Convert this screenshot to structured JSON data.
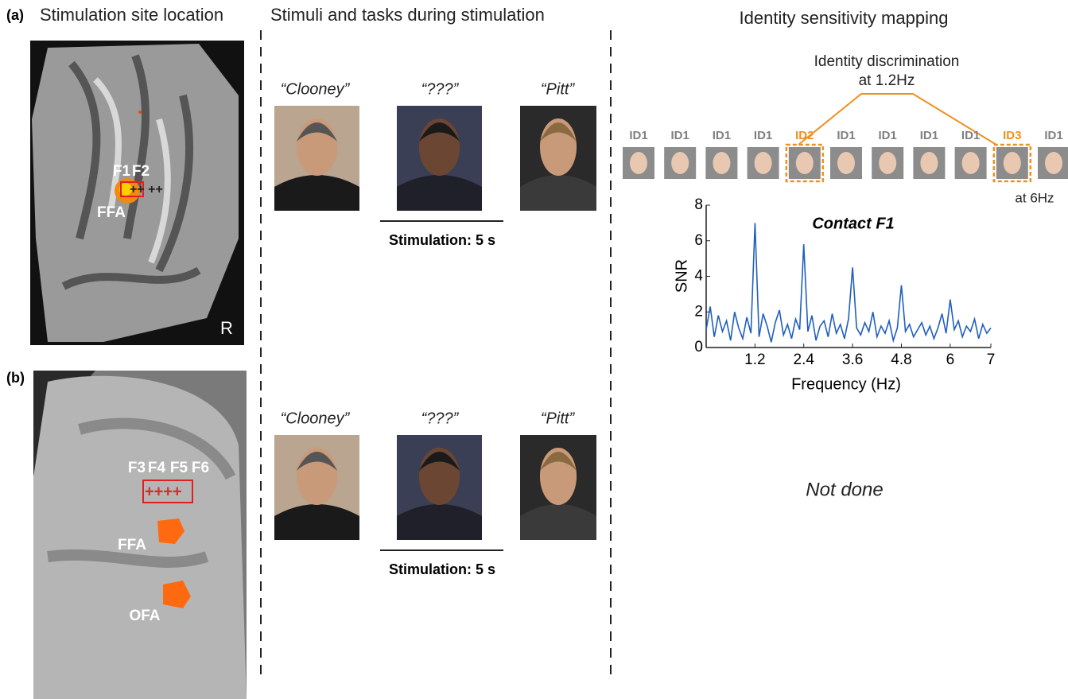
{
  "panels": {
    "a": "(a)",
    "b": "(b)"
  },
  "headers": [
    "Stimulation site location",
    "Stimuli and tasks during stimulation",
    "Identity sensitivity mapping"
  ],
  "brain_a": {
    "contacts": [
      "F1",
      "F2"
    ],
    "region": "FFA",
    "side": "R"
  },
  "brain_b": {
    "contacts": [
      "F3",
      "F4",
      "F5",
      "F6"
    ],
    "regions": [
      "FFA",
      "OFA"
    ]
  },
  "stimuli": [
    {
      "names": [
        "“Clooney”",
        "“???”",
        "“Pitt”"
      ],
      "task": "Stimulation:  5 s"
    },
    {
      "names": [
        "“Clooney”",
        "“???”",
        "“Pitt”"
      ],
      "task": "Stimulation:  5 s"
    }
  ],
  "mapping": {
    "discrimination": [
      "Identity discrimination",
      "at 1.2Hz"
    ],
    "base_rate": "at 6Hz",
    "not_done": "Not done",
    "ids": [
      {
        "label": "ID1",
        "color": "#7f7f7f"
      },
      {
        "label": "ID1",
        "color": "#7f7f7f"
      },
      {
        "label": "ID1",
        "color": "#7f7f7f"
      },
      {
        "label": "ID1",
        "color": "#7f7f7f"
      },
      {
        "label": "ID2",
        "color": "#f0901e"
      },
      {
        "label": "ID1",
        "color": "#7f7f7f"
      },
      {
        "label": "ID1",
        "color": "#7f7f7f"
      },
      {
        "label": "ID1",
        "color": "#7f7f7f"
      },
      {
        "label": "ID1",
        "color": "#7f7f7f"
      },
      {
        "label": "ID3",
        "color": "#f0901e"
      },
      {
        "label": "ID1",
        "color": "#7f7f7f"
      }
    ]
  },
  "chart_data": {
    "type": "line",
    "title": "Contact F1",
    "xlabel": "Frequency (Hz)",
    "ylabel": "SNR",
    "xlim": [
      0,
      7
    ],
    "ylim": [
      0,
      8
    ],
    "xticks": [
      1.2,
      2.4,
      3.6,
      4.8,
      6,
      7
    ],
    "yticks": [
      0,
      2,
      4,
      6,
      8
    ],
    "color": "#1f5fbf",
    "x": [
      0.0,
      0.1,
      0.2,
      0.3,
      0.4,
      0.5,
      0.6,
      0.7,
      0.8,
      0.9,
      1.0,
      1.1,
      1.2,
      1.3,
      1.4,
      1.5,
      1.6,
      1.7,
      1.8,
      1.9,
      2.0,
      2.1,
      2.2,
      2.3,
      2.4,
      2.5,
      2.6,
      2.7,
      2.8,
      2.9,
      3.0,
      3.1,
      3.2,
      3.3,
      3.4,
      3.5,
      3.6,
      3.7,
      3.8,
      3.9,
      4.0,
      4.1,
      4.2,
      4.3,
      4.4,
      4.5,
      4.6,
      4.7,
      4.8,
      4.9,
      5.0,
      5.1,
      5.2,
      5.3,
      5.4,
      5.5,
      5.6,
      5.7,
      5.8,
      5.9,
      6.0,
      6.1,
      6.2,
      6.3,
      6.4,
      6.5,
      6.6,
      6.7,
      6.8,
      6.9,
      7.0
    ],
    "values": [
      1.0,
      2.3,
      0.6,
      1.8,
      0.9,
      1.5,
      0.4,
      2.0,
      1.1,
      0.5,
      1.7,
      0.8,
      7.0,
      0.6,
      1.9,
      1.2,
      0.3,
      1.4,
      2.1,
      0.7,
      1.3,
      0.5,
      1.6,
      1.0,
      5.8,
      0.9,
      1.8,
      0.4,
      1.2,
      1.5,
      0.6,
      1.9,
      0.8,
      1.3,
      0.5,
      1.6,
      4.5,
      1.1,
      0.7,
      1.4,
      0.9,
      2.0,
      0.6,
      1.2,
      0.8,
      1.5,
      0.4,
      1.1,
      3.5,
      0.9,
      1.3,
      0.6,
      1.0,
      1.4,
      0.7,
      1.2,
      0.5,
      1.1,
      1.9,
      0.8,
      2.7,
      1.0,
      1.5,
      0.6,
      1.2,
      0.9,
      1.6,
      0.5,
      1.3,
      0.8,
      1.1
    ]
  }
}
